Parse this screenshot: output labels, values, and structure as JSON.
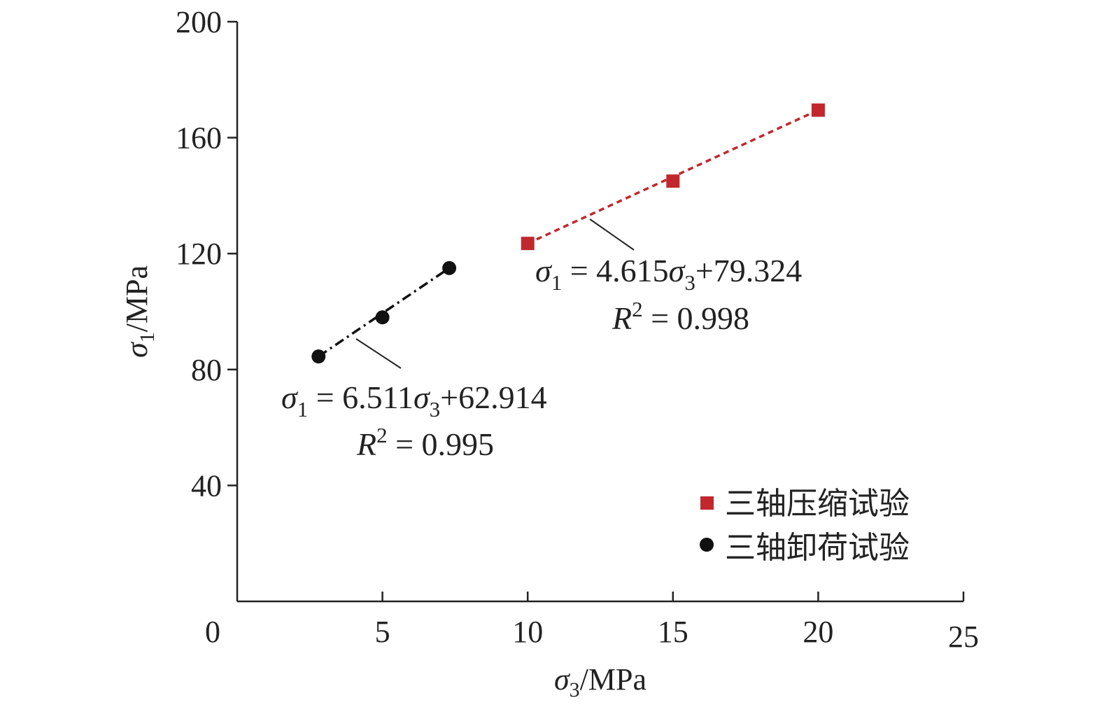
{
  "chart_data": {
    "type": "scatter",
    "title": "",
    "xlabel": {
      "main": "σ",
      "sub": "3",
      "tail": "/MPa"
    },
    "ylabel": {
      "main": "σ",
      "sub": "1",
      "tail": "/MPa"
    },
    "xlim": [
      0,
      25
    ],
    "ylim": [
      0,
      200
    ],
    "xticks": [
      0,
      5,
      10,
      15,
      20,
      25
    ],
    "yticks": [
      40,
      80,
      120,
      160,
      200
    ],
    "grid": false,
    "legend_position": "bottom-right",
    "series": [
      {
        "name": "三轴压缩试验",
        "marker": "square",
        "color": "#c1272d",
        "x": [
          10,
          15,
          20
        ],
        "y": [
          123.5,
          145,
          169.5
        ],
        "fit": {
          "style": "dashed",
          "slope": 4.615,
          "intercept": 79.324,
          "equation": {
            "lhs_main": "σ",
            "lhs_sub": "1",
            "eq": " = 4.615",
            "var_main": "σ",
            "var_sub": "3",
            "tail": "+79.324"
          },
          "r2": {
            "main": "R",
            "sup": "2",
            "tail": " = 0.998"
          }
        }
      },
      {
        "name": "三轴卸荷试验",
        "marker": "circle",
        "color": "#111111",
        "x": [
          2.8,
          5,
          7.3
        ],
        "y": [
          84.5,
          98,
          115
        ],
        "fit": {
          "style": "dash-dot",
          "slope": 6.511,
          "intercept": 62.914,
          "equation": {
            "lhs_main": "σ",
            "lhs_sub": "1",
            "eq": " = 6.511",
            "var_main": "σ",
            "var_sub": "3",
            "tail": "+62.914"
          },
          "r2": {
            "main": "R",
            "sup": "2",
            "tail": " = 0.995"
          }
        }
      }
    ]
  }
}
